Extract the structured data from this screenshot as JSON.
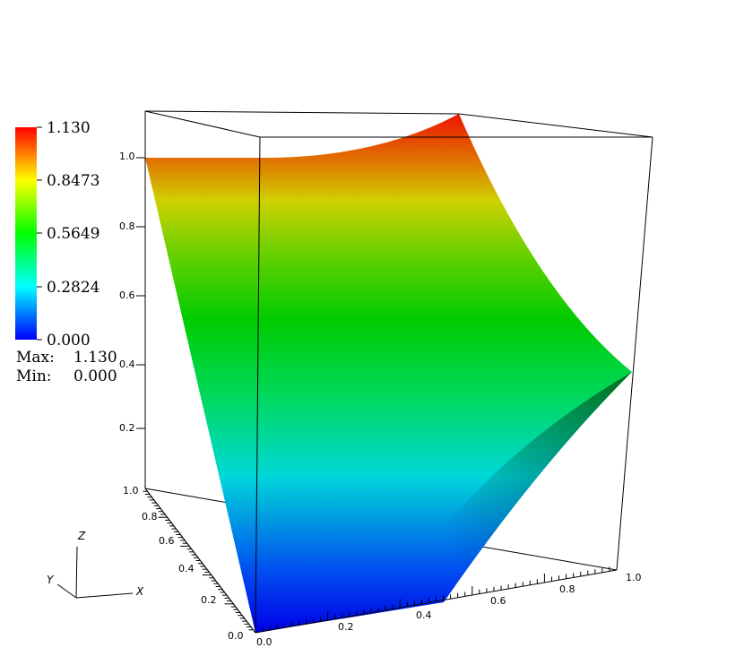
{
  "chart_data": {
    "type": "surface",
    "colorbar": {
      "ticks": [
        "1.130",
        "0.8473",
        "0.5649",
        "0.2824",
        "0.000"
      ],
      "range": [
        0.0,
        1.13
      ],
      "max_label": "Max:",
      "max_value": "1.130",
      "min_label": "Min:",
      "min_value": "0.000",
      "colors": [
        "#0000ff",
        "#00ffff",
        "#00ff00",
        "#ffff00",
        "#ff0000"
      ]
    },
    "axes": {
      "x_ticks": [
        "0.0",
        "0.2",
        "0.4",
        "0.6",
        "0.8",
        "1.0"
      ],
      "y_ticks": [
        "0.0",
        "0.2",
        "0.4",
        "0.6",
        "0.8",
        "1.0"
      ],
      "z_ticks": [
        "0.2",
        "0.4",
        "0.6",
        "0.8",
        "1.0"
      ],
      "xlim": [
        0,
        1
      ],
      "ylim": [
        0,
        1
      ],
      "zlim": [
        0,
        1.13
      ]
    },
    "surface": {
      "description_values": [
        {
          "x": 0.0,
          "y": 0.0,
          "z": 0.0
        },
        {
          "x": 0.0,
          "y": 1.0,
          "z": 1.0
        },
        {
          "x": 1.0,
          "y": 1.0,
          "z": 1.13
        },
        {
          "x": 1.0,
          "y": 0.0,
          "z": 0.4
        },
        {
          "x": 0.4,
          "y": 0.0,
          "z": 0.0
        }
      ]
    },
    "triad": {
      "x_label": "X",
      "y_label": "Y",
      "z_label": "Z"
    }
  }
}
